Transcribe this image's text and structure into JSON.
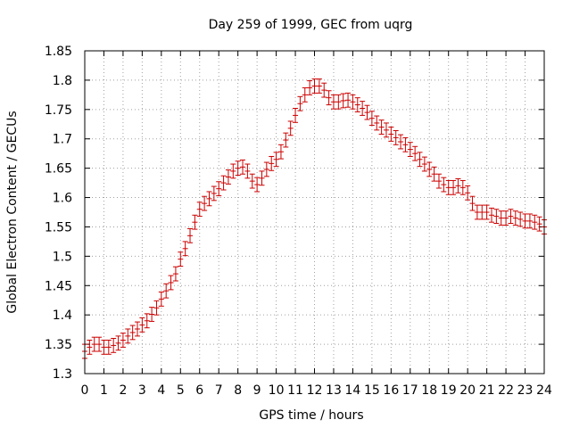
{
  "chart_data": {
    "type": "scatter",
    "title": "Day 259 of 1999, GEC from uqrg",
    "xlabel": "GPS time / hours",
    "ylabel": "Global Electron Content / GECUs",
    "xlim": [
      0,
      24
    ],
    "ylim": [
      1.3,
      1.85
    ],
    "grid": true,
    "x_ticks": [
      0,
      1,
      2,
      3,
      4,
      5,
      6,
      7,
      8,
      9,
      10,
      11,
      12,
      13,
      14,
      15,
      16,
      17,
      18,
      19,
      20,
      21,
      22,
      23,
      24
    ],
    "y_ticks": [
      1.3,
      1.35,
      1.4,
      1.45,
      1.5,
      1.55,
      1.6,
      1.65,
      1.7,
      1.75,
      1.8,
      1.85
    ],
    "y_tick_labels": [
      "1.3",
      "1.35",
      "1.4",
      "1.45",
      "1.5",
      "1.55",
      "1.6",
      "1.65",
      "1.7",
      "1.75",
      "1.8",
      "1.85"
    ],
    "series": [
      {
        "name": "GEC",
        "color": "#cc0000",
        "error": 0.012,
        "x": [
          0,
          0.25,
          0.5,
          0.75,
          1,
          1.25,
          1.5,
          1.75,
          2,
          2.25,
          2.5,
          2.75,
          3,
          3.25,
          3.5,
          3.75,
          4,
          4.25,
          4.5,
          4.75,
          5,
          5.25,
          5.5,
          5.75,
          6,
          6.25,
          6.5,
          6.75,
          7,
          7.25,
          7.5,
          7.75,
          8,
          8.25,
          8.5,
          8.75,
          9,
          9.25,
          9.5,
          9.75,
          10,
          10.25,
          10.5,
          10.75,
          11,
          11.25,
          11.5,
          11.75,
          12,
          12.25,
          12.5,
          12.75,
          13,
          13.25,
          13.5,
          13.75,
          14,
          14.25,
          14.5,
          14.75,
          15,
          15.25,
          15.5,
          15.75,
          16,
          16.25,
          16.5,
          16.75,
          17,
          17.25,
          17.5,
          17.75,
          18,
          18.25,
          18.5,
          18.75,
          19,
          19.25,
          19.5,
          19.75,
          20,
          20.25,
          20.5,
          20.75,
          21,
          21.25,
          21.5,
          21.75,
          22,
          22.25,
          22.5,
          22.75,
          23,
          23.25,
          23.5,
          23.75,
          24
        ],
        "values": [
          1.338,
          1.345,
          1.35,
          1.35,
          1.345,
          1.345,
          1.348,
          1.352,
          1.357,
          1.364,
          1.37,
          1.376,
          1.383,
          1.39,
          1.401,
          1.412,
          1.427,
          1.441,
          1.455,
          1.47,
          1.495,
          1.513,
          1.535,
          1.558,
          1.58,
          1.59,
          1.598,
          1.607,
          1.615,
          1.625,
          1.635,
          1.645,
          1.65,
          1.652,
          1.645,
          1.628,
          1.622,
          1.633,
          1.648,
          1.658,
          1.665,
          1.678,
          1.698,
          1.718,
          1.74,
          1.76,
          1.775,
          1.787,
          1.79,
          1.79,
          1.783,
          1.77,
          1.763,
          1.763,
          1.765,
          1.766,
          1.763,
          1.758,
          1.752,
          1.745,
          1.735,
          1.727,
          1.72,
          1.715,
          1.708,
          1.702,
          1.695,
          1.69,
          1.682,
          1.675,
          1.665,
          1.657,
          1.648,
          1.64,
          1.628,
          1.622,
          1.617,
          1.617,
          1.62,
          1.617,
          1.608,
          1.59,
          1.575,
          1.575,
          1.575,
          1.57,
          1.568,
          1.565,
          1.565,
          1.568,
          1.565,
          1.563,
          1.56,
          1.56,
          1.558,
          1.555,
          1.55
        ]
      }
    ]
  }
}
